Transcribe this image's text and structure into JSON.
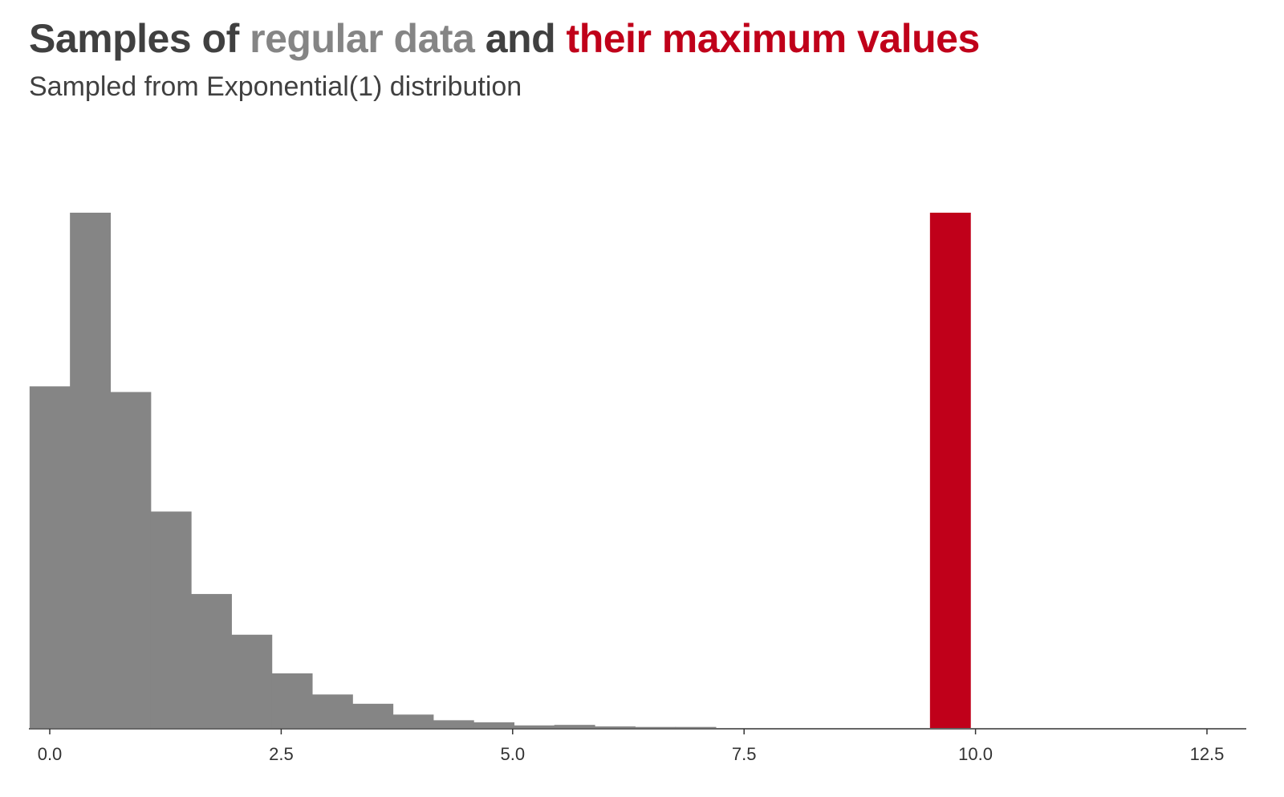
{
  "title": {
    "part1": "Samples of ",
    "part2": "regular data",
    "part3": " and ",
    "part4": "their maximum values"
  },
  "subtitle": "Sampled from Exponential(1) distribution",
  "colors": {
    "text_dark": "#404040",
    "regular": "#858585",
    "maximum": "#c0001a",
    "axis": "#333333",
    "background": "#ffffff"
  },
  "chart_data": {
    "type": "bar",
    "title": "Samples of regular data and their maximum values",
    "subtitle": "Sampled from Exponential(1) distribution",
    "xlabel": "",
    "ylabel": "",
    "xlim": [
      -0.22,
      12.9
    ],
    "ylim": [
      0,
      1
    ],
    "grid": false,
    "legend": "none",
    "x_ticks": [
      0.0,
      2.5,
      5.0,
      7.5,
      10.0,
      12.5
    ],
    "x_tick_labels": [
      "0.0",
      "2.5",
      "5.0",
      "7.5",
      "10.0",
      "12.5"
    ],
    "bin_width": 0.436,
    "series": [
      {
        "name": "regular data",
        "color": "#858585",
        "bins": [
          {
            "x0": -0.218,
            "x1": 0.218,
            "value": 0.663
          },
          {
            "x0": 0.218,
            "x1": 0.654,
            "value": 1.0
          },
          {
            "x0": 0.654,
            "x1": 1.09,
            "value": 0.652
          },
          {
            "x0": 1.09,
            "x1": 1.526,
            "value": 0.42
          },
          {
            "x0": 1.526,
            "x1": 1.962,
            "value": 0.26
          },
          {
            "x0": 1.962,
            "x1": 2.398,
            "value": 0.181
          },
          {
            "x0": 2.398,
            "x1": 2.834,
            "value": 0.106
          },
          {
            "x0": 2.834,
            "x1": 3.27,
            "value": 0.065
          },
          {
            "x0": 3.27,
            "x1": 3.706,
            "value": 0.047
          },
          {
            "x0": 3.706,
            "x1": 4.142,
            "value": 0.026
          },
          {
            "x0": 4.142,
            "x1": 4.578,
            "value": 0.015
          },
          {
            "x0": 4.578,
            "x1": 5.014,
            "value": 0.011
          },
          {
            "x0": 5.014,
            "x1": 5.45,
            "value": 0.005
          },
          {
            "x0": 5.45,
            "x1": 5.886,
            "value": 0.006
          },
          {
            "x0": 5.886,
            "x1": 6.322,
            "value": 0.003
          },
          {
            "x0": 6.322,
            "x1": 6.758,
            "value": 0.002
          },
          {
            "x0": 6.758,
            "x1": 7.194,
            "value": 0.002
          }
        ]
      },
      {
        "name": "their maximum values",
        "color": "#c0001a",
        "bins": [
          {
            "x0": 9.508,
            "x1": 9.944,
            "value": 1.0
          }
        ]
      }
    ]
  }
}
